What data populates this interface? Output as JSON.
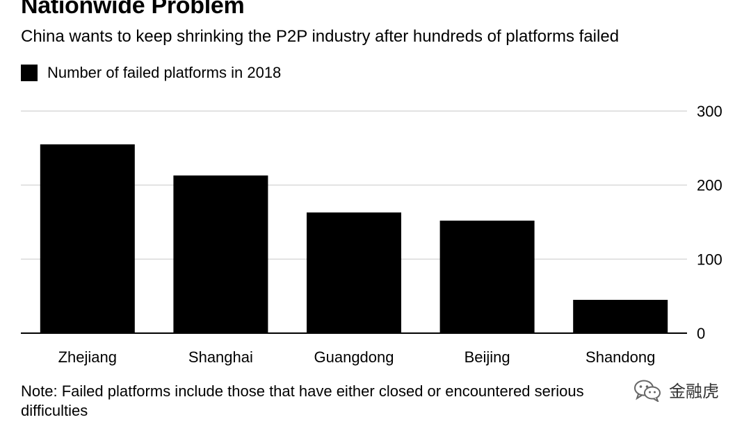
{
  "header": {
    "title": "Nationwide Problem",
    "subtitle": "China wants to keep shrinking the P2P industry after hundreds of platforms failed"
  },
  "colors": {
    "bar": "#000000",
    "grid": "#d9d9d9",
    "axis": "#000000",
    "background": "#ffffff"
  },
  "chart_data": {
    "type": "bar",
    "categories": [
      "Zhejiang",
      "Shanghai",
      "Guangdong",
      "Beijing",
      "Shandong"
    ],
    "series": [
      {
        "name": "Number of failed platforms in 2018",
        "values": [
          255,
          213,
          163,
          152,
          45
        ]
      }
    ],
    "ylim": [
      0,
      300
    ],
    "yticks": [
      0,
      100,
      200,
      300
    ],
    "grid": true,
    "y_axis_side": "right",
    "legend_position": "top-left"
  },
  "footer": {
    "note": "Note: Failed platforms include those that have either closed or encountered serious difficulties"
  },
  "watermark": {
    "icon": "wechat-icon",
    "text": "金融虎"
  }
}
